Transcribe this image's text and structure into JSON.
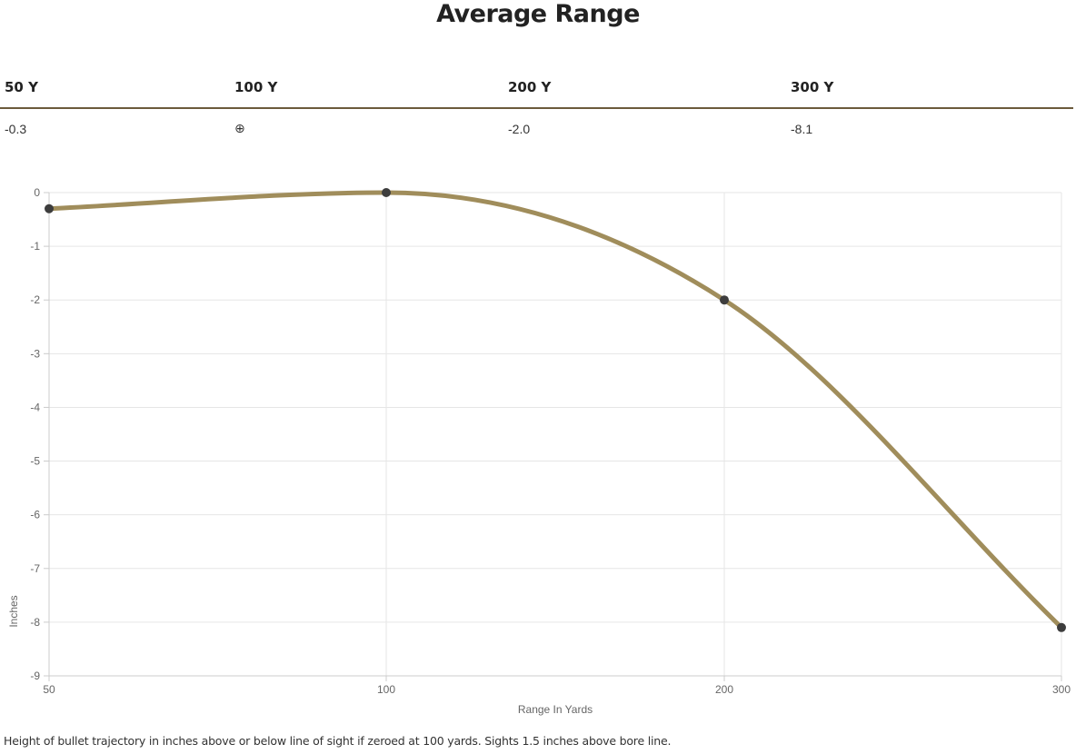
{
  "title": "Average Range",
  "range_table": {
    "headers": [
      "50 Y",
      "100 Y",
      "200 Y",
      "300 Y"
    ],
    "values": [
      "-0.3",
      "⊕",
      "-2.0",
      "-8.1"
    ]
  },
  "chart_data": {
    "type": "line",
    "title": "",
    "xlabel": "Range In Yards",
    "ylabel": "Inches",
    "x": [
      50,
      100,
      200,
      300
    ],
    "x_ticks": [
      "50",
      "100",
      "200",
      "300"
    ],
    "y_ticks": [
      "0",
      "-1",
      "-2",
      "-3",
      "-4",
      "-5",
      "-6",
      "-7",
      "-8",
      "-9"
    ],
    "ylim": [
      -9,
      0
    ],
    "series": [
      {
        "values": [
          -0.3,
          0,
          -2.0,
          -8.1
        ]
      }
    ],
    "grid": true,
    "line_color": "#a08d5b",
    "point_color": "#3d3d3d"
  },
  "footnote": "Height of bullet trajectory in inches above or below line of sight if zeroed at 100 yards. Sights 1.5 inches above bore line."
}
